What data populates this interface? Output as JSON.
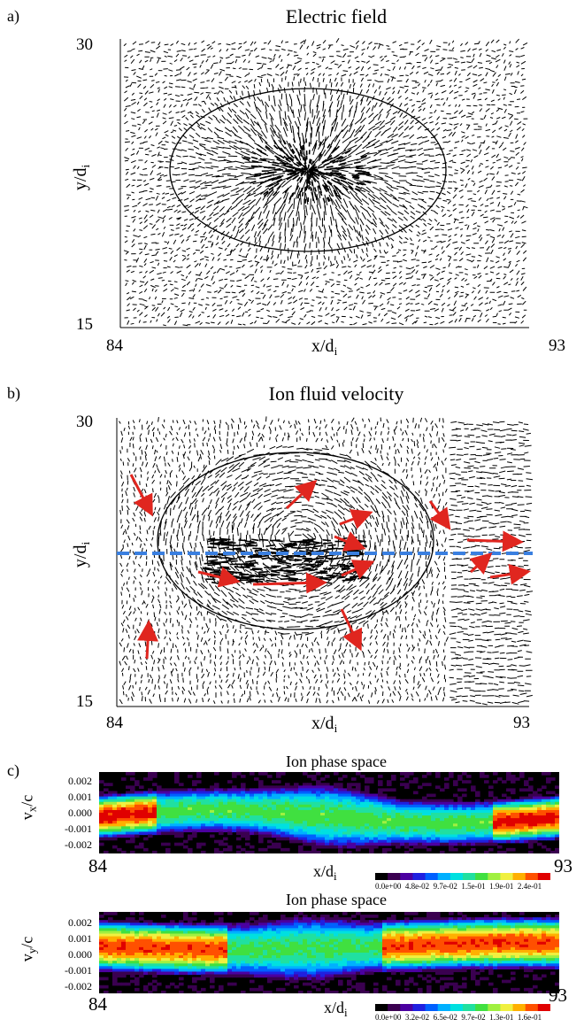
{
  "panel_a": {
    "label": "a)",
    "title": "Electric field",
    "y_top": "30",
    "y_bottom": "15",
    "x_left": "84",
    "x_right": "93",
    "x_label": "x/d",
    "x_label_sub": "i",
    "y_label": "y/d",
    "y_label_sub": "i"
  },
  "panel_b": {
    "label": "b)",
    "title": "Ion fluid velocity",
    "y_top": "30",
    "y_bottom": "15",
    "x_left": "84",
    "x_right": "93",
    "x_label": "x/d",
    "x_label_sub": "i",
    "y_label": "y/d",
    "y_label_sub": "i",
    "highlight_arrow_color": "#e0261f",
    "cut_line_color": "#3a7fe0"
  },
  "panel_c": {
    "label": "c)",
    "top": {
      "title": "Ion phase space",
      "y_label": "v",
      "y_label_sub": "x",
      "y_label_tail": "/c",
      "y_ticks": [
        "0.002",
        "0.001",
        "0.000",
        "-0.001",
        "-0.002"
      ],
      "x_left": "84",
      "x_right": "93",
      "x_label": "x/d",
      "x_label_sub": "i",
      "colorbar_ticks": [
        "0.0e+00",
        "4.8e-02",
        "9.7e-02",
        "1.5e-01",
        "1.9e-01",
        "2.4e-01"
      ]
    },
    "bottom": {
      "title": "Ion phase space",
      "y_label": "v",
      "y_label_sub": "y",
      "y_label_tail": "/c",
      "y_ticks": [
        "0.002",
        "0.001",
        "0.000",
        "-0.001",
        "-0.002"
      ],
      "x_left": "84",
      "x_right": "93",
      "x_label": "x/d",
      "x_label_sub": "i",
      "colorbar_ticks": [
        "0.0e+00",
        "3.2e-02",
        "6.5e-02",
        "9.7e-02",
        "1.3e-01",
        "1.6e-01"
      ]
    },
    "colormap": [
      "#000000",
      "#3a0050",
      "#4b00a0",
      "#2020e0",
      "#0060ff",
      "#00b0ff",
      "#00e0e0",
      "#20e0a0",
      "#40e040",
      "#a0f040",
      "#f0f040",
      "#ffb000",
      "#ff5000",
      "#e00000"
    ]
  }
}
